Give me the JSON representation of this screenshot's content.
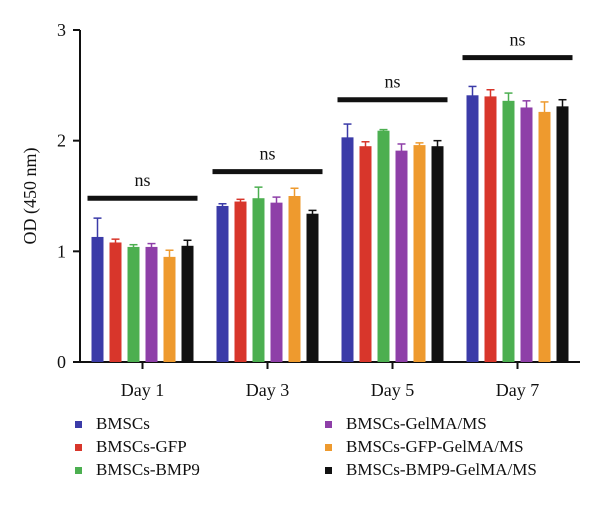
{
  "chart_data": {
    "type": "bar",
    "ylabel": "OD (450 nm)",
    "xlabel": "",
    "ylim": [
      0,
      3
    ],
    "yticks": [
      "0",
      "1",
      "2",
      "3"
    ],
    "categories": [
      "Day 1",
      "Day 3",
      "Day 5",
      "Day 7"
    ],
    "series": [
      {
        "name": "BMSCs",
        "color": "#3b3ba8",
        "values": [
          1.13,
          1.41,
          2.03,
          2.41
        ],
        "errors": [
          0.17,
          0.02,
          0.12,
          0.08
        ]
      },
      {
        "name": "BMSCs-GFP",
        "color": "#d8362b",
        "values": [
          1.08,
          1.45,
          1.95,
          2.4
        ],
        "errors": [
          0.03,
          0.02,
          0.04,
          0.06
        ]
      },
      {
        "name": "BMSCs-BMP9",
        "color": "#4caf50",
        "values": [
          1.04,
          1.48,
          2.09,
          2.36
        ],
        "errors": [
          0.02,
          0.1,
          0.01,
          0.07
        ]
      },
      {
        "name": "BMSCs-GelMA/MS",
        "color": "#8e3fa8",
        "values": [
          1.04,
          1.44,
          1.91,
          2.3
        ],
        "errors": [
          0.03,
          0.05,
          0.06,
          0.06
        ]
      },
      {
        "name": "BMSCs-GFP-GelMA/MS",
        "color": "#ee9a2e",
        "values": [
          0.95,
          1.5,
          1.96,
          2.26
        ],
        "errors": [
          0.06,
          0.07,
          0.02,
          0.09
        ]
      },
      {
        "name": "BMSCs-BMP9-GelMA/MS",
        "color": "#111111",
        "values": [
          1.05,
          1.34,
          1.95,
          2.31
        ],
        "errors": [
          0.05,
          0.03,
          0.05,
          0.06
        ]
      }
    ],
    "annotations": [
      {
        "category": "Day 1",
        "text": "ns",
        "y": 1.48
      },
      {
        "category": "Day 3",
        "text": "ns",
        "y": 1.72
      },
      {
        "category": "Day 5",
        "text": "ns",
        "y": 2.37
      },
      {
        "category": "Day 7",
        "text": "ns",
        "y": 2.75
      }
    ],
    "grid": false,
    "legend_position": "bottom"
  }
}
